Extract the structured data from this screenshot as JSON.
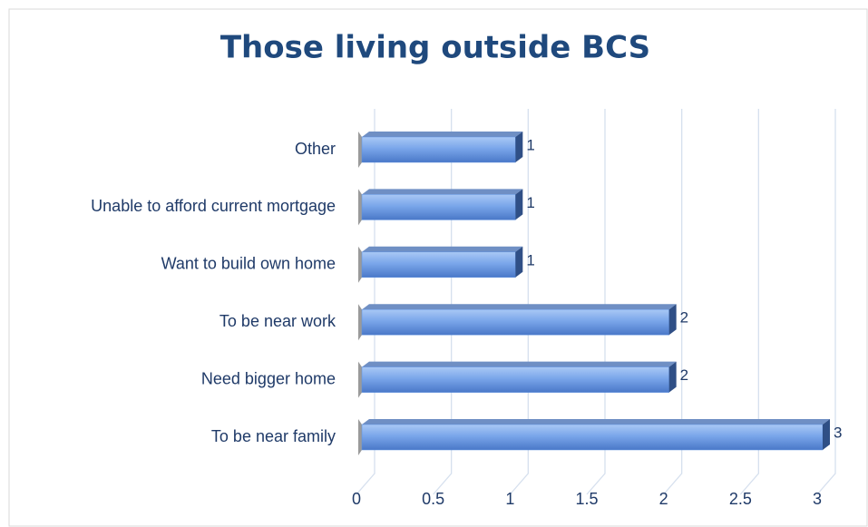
{
  "chart_data": {
    "type": "bar",
    "orientation": "horizontal",
    "title": "Those living outside BCS",
    "categories": [
      "To be near family",
      "Need bigger home",
      "To be near work",
      "Want to build own home",
      "Unable to afford current mortgage",
      "Other"
    ],
    "values": [
      3,
      2,
      2,
      1,
      1,
      1
    ],
    "color": "#5b8fe0",
    "xlim": [
      0,
      3
    ],
    "xticks": [
      0,
      0.5,
      1,
      1.5,
      2,
      2.5,
      3
    ],
    "grid": true
  }
}
